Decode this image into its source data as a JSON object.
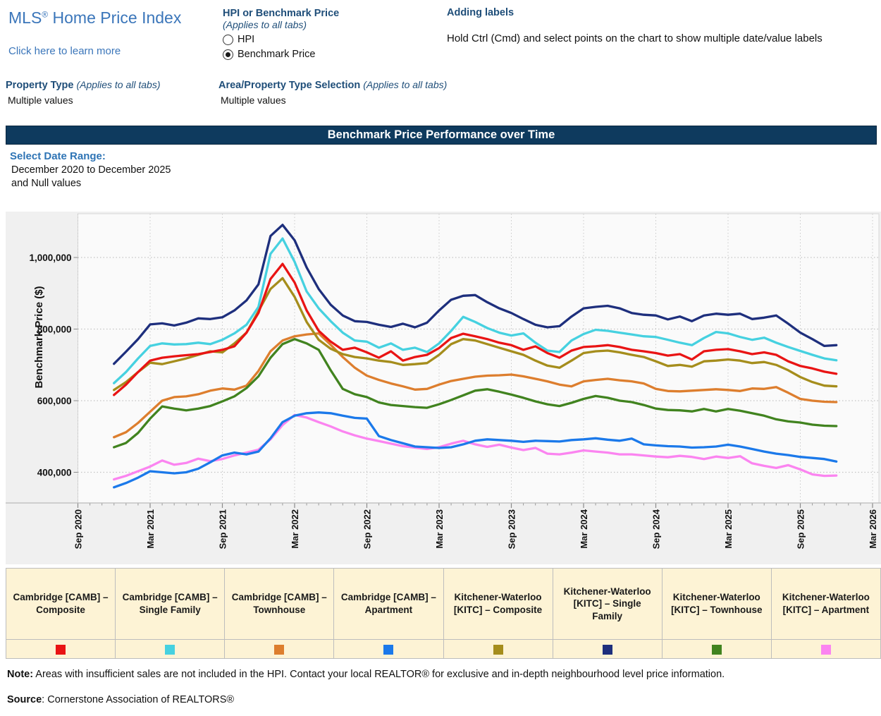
{
  "header": {
    "title_prefix": "MLS",
    "title_mark": "®",
    "title_rest": " Home Price Index",
    "learn_more": "Click here to learn more",
    "hpi_control": {
      "label": "HPI or Benchmark Price",
      "sublabel": "(Applies to all tabs)",
      "options": [
        {
          "label": "HPI",
          "selected": false
        },
        {
          "label": "Benchmark Price",
          "selected": true
        }
      ]
    },
    "adding_labels": {
      "title": "Adding labels",
      "instruction": "Hold Ctrl (Cmd) and select points on the chart to show multiple date/value labels"
    },
    "property_type": {
      "label": "Property Type ",
      "sublabel": "(Applies to all tabs)",
      "value": "Multiple values"
    },
    "area_property_type": {
      "label": "Area/Property Type Selection ",
      "sublabel": "(Applies to all tabs)",
      "value": "Multiple values"
    }
  },
  "banner": {
    "title": "Benchmark Price Performance over Time",
    "bg": "#0e3a5e"
  },
  "date_range": {
    "label": "Select Date Range:",
    "line1": "December 2020 to December 2025",
    "line2": "and Null values"
  },
  "chart_data": {
    "type": "line",
    "title": "Benchmark Price Performance over Time",
    "ylabel": "Benchmark Price ($)",
    "unit": "values in thousands of dollars (CAD)",
    "ylim_thousands": [
      310,
      1120
    ],
    "grid": "dotted",
    "legend_position": "bottom-table",
    "y_ticks": {
      "values_thousands": [
        400,
        600,
        800,
        1000
      ],
      "labels": [
        "400,000",
        "600,000",
        "800,000",
        "1,000,000"
      ]
    },
    "x_ticks": [
      "Sep 2020",
      "Mar 2021",
      "Sep 2021",
      "Mar 2022",
      "Sep 2022",
      "Mar 2023",
      "Sep 2023",
      "Mar 2024",
      "Sep 2024",
      "Mar 2025",
      "Sep 2025",
      "Mar 2026"
    ],
    "months": [
      "Dec 2020",
      "Jan 2021",
      "Feb 2021",
      "Mar 2021",
      "Apr 2021",
      "May 2021",
      "Jun 2021",
      "Jul 2021",
      "Aug 2021",
      "Sep 2021",
      "Oct 2021",
      "Nov 2021",
      "Dec 2021",
      "Jan 2022",
      "Feb 2022",
      "Mar 2022",
      "Apr 2022",
      "May 2022",
      "Jun 2022",
      "Jul 2022",
      "Aug 2022",
      "Sep 2022",
      "Oct 2022",
      "Nov 2022",
      "Dec 2022",
      "Jan 2023",
      "Feb 2023",
      "Mar 2023",
      "Apr 2023",
      "May 2023",
      "Jun 2023",
      "Jul 2023",
      "Aug 2023",
      "Sep 2023",
      "Oct 2023",
      "Nov 2023",
      "Dec 2023",
      "Jan 2024",
      "Feb 2024",
      "Mar 2024",
      "Apr 2024",
      "May 2024",
      "Jun 2024",
      "Jul 2024",
      "Aug 2024",
      "Sep 2024",
      "Oct 2024",
      "Nov 2024",
      "Dec 2024",
      "Jan 2025",
      "Feb 2025",
      "Mar 2025",
      "Apr 2025",
      "May 2025",
      "Jun 2025",
      "Jul 2025",
      "Aug 2025",
      "Sep 2025",
      "Oct 2025",
      "Nov 2025",
      "Dec 2025"
    ],
    "series": [
      {
        "name": "Cambridge [CAMB] – Composite",
        "color": "#e91414",
        "values": [
          616,
          645,
          680,
          712,
          720,
          724,
          727,
          730,
          736,
          742,
          752,
          790,
          845,
          940,
          982,
          930,
          852,
          795,
          765,
          742,
          748,
          735,
          720,
          738,
          712,
          722,
          728,
          747,
          775,
          787,
          780,
          772,
          762,
          755,
          742,
          752,
          733,
          720,
          740,
          750,
          752,
          755,
          750,
          742,
          738,
          733,
          726,
          730,
          715,
          738,
          742,
          744,
          738,
          730,
          735,
          728,
          710,
          697,
          690,
          681,
          675
        ]
      },
      {
        "name": "Cambridge [CAMB] – Single Family",
        "color": "#46d1e0",
        "values": [
          649,
          680,
          718,
          753,
          760,
          757,
          758,
          762,
          758,
          770,
          788,
          812,
          862,
          1010,
          1053,
          988,
          905,
          858,
          822,
          790,
          768,
          765,
          748,
          760,
          742,
          748,
          736,
          760,
          795,
          834,
          820,
          803,
          790,
          782,
          788,
          762,
          740,
          736,
          768,
          786,
          798,
          795,
          790,
          785,
          780,
          778,
          770,
          762,
          755,
          775,
          792,
          788,
          778,
          770,
          776,
          762,
          750,
          739,
          728,
          718,
          713
        ]
      },
      {
        "name": "Cambridge [CAMB] – Townhouse",
        "color": "#dd7e2e",
        "values": [
          498,
          512,
          538,
          569,
          600,
          610,
          612,
          618,
          628,
          634,
          631,
          642,
          683,
          738,
          768,
          780,
          785,
          788,
          756,
          722,
          692,
          670,
          658,
          648,
          640,
          631,
          633,
          645,
          655,
          661,
          667,
          670,
          671,
          673,
          668,
          661,
          654,
          645,
          640,
          654,
          658,
          661,
          657,
          654,
          648,
          633,
          627,
          626,
          628,
          630,
          632,
          630,
          627,
          634,
          633,
          638,
          622,
          605,
          600,
          597,
          596
        ]
      },
      {
        "name": "Cambridge [CAMB] – Apartment",
        "color": "#1b79ea",
        "values": [
          358,
          370,
          385,
          403,
          400,
          397,
          400,
          410,
          428,
          447,
          455,
          450,
          458,
          495,
          540,
          558,
          565,
          567,
          565,
          558,
          552,
          550,
          501,
          490,
          481,
          472,
          470,
          468,
          470,
          478,
          488,
          492,
          490,
          488,
          485,
          488,
          487,
          486,
          490,
          492,
          495,
          491,
          488,
          494,
          478,
          475,
          473,
          472,
          469,
          470,
          472,
          477,
          472,
          465,
          458,
          452,
          448,
          443,
          440,
          437,
          430
        ]
      },
      {
        "name": "Kitchener-Waterloo [KITC] – Composite",
        "color": "#a58d1c",
        "values": [
          630,
          652,
          680,
          706,
          702,
          710,
          718,
          728,
          738,
          735,
          760,
          790,
          850,
          912,
          942,
          890,
          820,
          770,
          745,
          730,
          722,
          718,
          712,
          708,
          700,
          702,
          705,
          728,
          758,
          772,
          768,
          758,
          748,
          738,
          728,
          712,
          698,
          692,
          712,
          733,
          738,
          740,
          735,
          728,
          722,
          710,
          697,
          700,
          695,
          710,
          712,
          715,
          712,
          705,
          708,
          700,
          685,
          666,
          652,
          642,
          640
        ]
      },
      {
        "name": "Kitchener-Waterloo [KITC] – Single Family",
        "color": "#1e2f7d",
        "values": [
          703,
          737,
          772,
          813,
          816,
          810,
          818,
          830,
          828,
          833,
          852,
          880,
          925,
          1060,
          1091,
          1048,
          972,
          912,
          868,
          838,
          822,
          820,
          812,
          806,
          815,
          805,
          818,
          852,
          882,
          893,
          895,
          875,
          858,
          845,
          828,
          812,
          805,
          808,
          835,
          858,
          862,
          865,
          858,
          845,
          840,
          838,
          827,
          835,
          822,
          838,
          843,
          840,
          843,
          828,
          832,
          838,
          815,
          790,
          772,
          753,
          755
        ]
      },
      {
        "name": "Kitchener-Waterloo [KITC] – Townhouse",
        "color": "#41831f",
        "values": [
          470,
          482,
          510,
          550,
          584,
          578,
          573,
          578,
          585,
          598,
          612,
          635,
          668,
          720,
          758,
          772,
          760,
          742,
          685,
          633,
          618,
          610,
          595,
          588,
          585,
          582,
          580,
          590,
          602,
          615,
          628,
          632,
          625,
          617,
          608,
          598,
          590,
          585,
          594,
          605,
          613,
          608,
          600,
          596,
          588,
          578,
          574,
          573,
          570,
          577,
          570,
          577,
          572,
          565,
          558,
          548,
          542,
          539,
          533,
          530,
          529
        ]
      },
      {
        "name": "Kitchener-Waterloo [KITC] – Apartment",
        "color": "#fb84f0",
        "values": [
          380,
          390,
          403,
          416,
          433,
          421,
          426,
          438,
          431,
          437,
          447,
          455,
          463,
          492,
          532,
          560,
          553,
          540,
          528,
          514,
          503,
          494,
          487,
          480,
          473,
          469,
          465,
          470,
          480,
          488,
          478,
          471,
          477,
          469,
          462,
          468,
          452,
          450,
          455,
          461,
          458,
          455,
          450,
          450,
          447,
          444,
          442,
          446,
          443,
          437,
          444,
          440,
          445,
          425,
          418,
          412,
          420,
          408,
          394,
          390,
          391
        ]
      }
    ]
  },
  "notes": {
    "note_label": "Note:",
    "note_text": " Areas with insufficient sales are not included in the HPI. Contact your local REALTOR® for exclusive and in-depth neighbourhood level price information.",
    "source_label": "Source",
    "source_text": ": Cornerstone Association of REALTORS®"
  }
}
